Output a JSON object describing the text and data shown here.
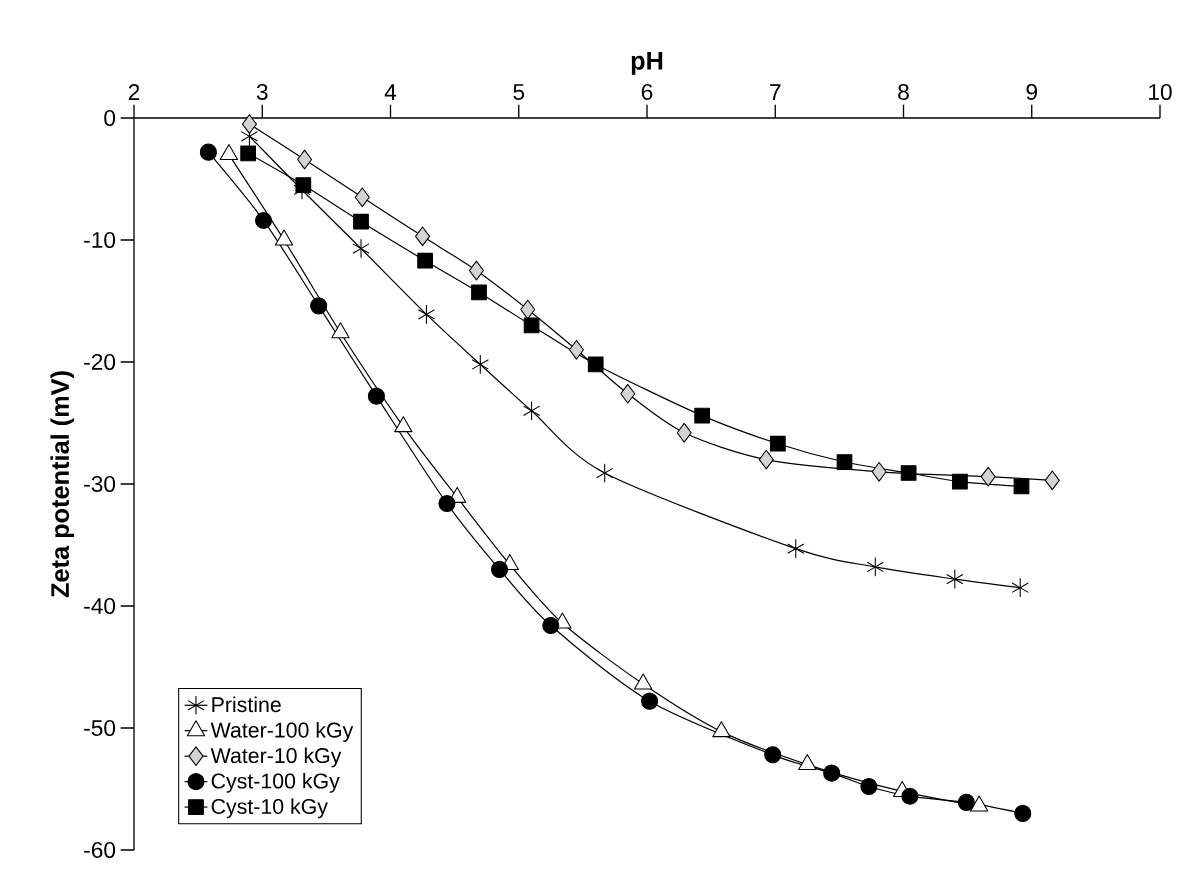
{
  "chart_data": {
    "type": "line",
    "xlabel": "pH",
    "ylabel": "Zeta potential (mV)",
    "xlim": [
      2,
      10
    ],
    "xticks": [
      2,
      3,
      4,
      5,
      6,
      7,
      8,
      9,
      10
    ],
    "ylim": [
      -60,
      0
    ],
    "yticks": [
      -60,
      -50,
      -40,
      -30,
      -20,
      -10,
      0
    ],
    "legend": "bottom left",
    "grid": false,
    "line_style": "solid",
    "series": [
      {
        "name": "Pristine",
        "color": "#000000",
        "marker": "cross",
        "x": [
          2.9,
          3.31,
          3.77,
          4.28,
          4.7,
          5.1,
          5.67,
          7.16,
          7.78,
          8.4,
          8.91
        ],
        "values": [
          -1.5,
          -5.9,
          -10.7,
          -16.1,
          -20.2,
          -24.0,
          -29.1,
          -35.3,
          -36.8,
          -37.8,
          -38.5
        ]
      },
      {
        "name": "Water-100 kGy",
        "color": "#ffffff",
        "marker": "triangle",
        "x": [
          2.74,
          3.17,
          3.61,
          4.1,
          4.52,
          4.93,
          5.34,
          5.97,
          6.58,
          7.25,
          7.99,
          8.59
        ],
        "values": [
          -3.0,
          -10.0,
          -17.6,
          -25.3,
          -31.1,
          -36.6,
          -41.4,
          -46.4,
          -50.3,
          -53.0,
          -55.2,
          -56.4
        ]
      },
      {
        "name": "Water-10 kGy",
        "color": "#d3d3d3",
        "marker": "diamond",
        "x": [
          2.9,
          3.33,
          3.78,
          4.25,
          4.67,
          5.07,
          5.45,
          5.85,
          6.29,
          6.93,
          7.81,
          8.66,
          9.16
        ],
        "values": [
          -0.5,
          -3.4,
          -6.5,
          -9.7,
          -12.5,
          -15.7,
          -19.0,
          -22.6,
          -25.8,
          -28.0,
          -29.0,
          -29.4,
          -29.7
        ]
      },
      {
        "name": "Cyst-100 kGy",
        "color": "#000000",
        "marker": "circle",
        "x": [
          2.58,
          3.01,
          3.44,
          3.89,
          4.44,
          4.85,
          5.25,
          6.02,
          6.98,
          7.44,
          7.73,
          8.05,
          8.49,
          8.93
        ],
        "values": [
          -2.8,
          -8.4,
          -15.4,
          -22.8,
          -31.6,
          -37.0,
          -41.6,
          -47.8,
          -52.2,
          -53.7,
          -54.8,
          -55.6,
          -56.1,
          -57.0
        ]
      },
      {
        "name": "Cyst-10 kGy",
        "color": "#000000",
        "marker": "square",
        "x": [
          2.89,
          3.32,
          3.77,
          4.27,
          4.69,
          5.1,
          5.6,
          6.43,
          7.02,
          7.54,
          8.04,
          8.44,
          8.92
        ],
        "values": [
          -2.9,
          -5.5,
          -8.5,
          -11.7,
          -14.3,
          -17.0,
          -20.2,
          -24.4,
          -26.7,
          -28.2,
          -29.1,
          -29.8,
          -30.2
        ]
      }
    ]
  }
}
